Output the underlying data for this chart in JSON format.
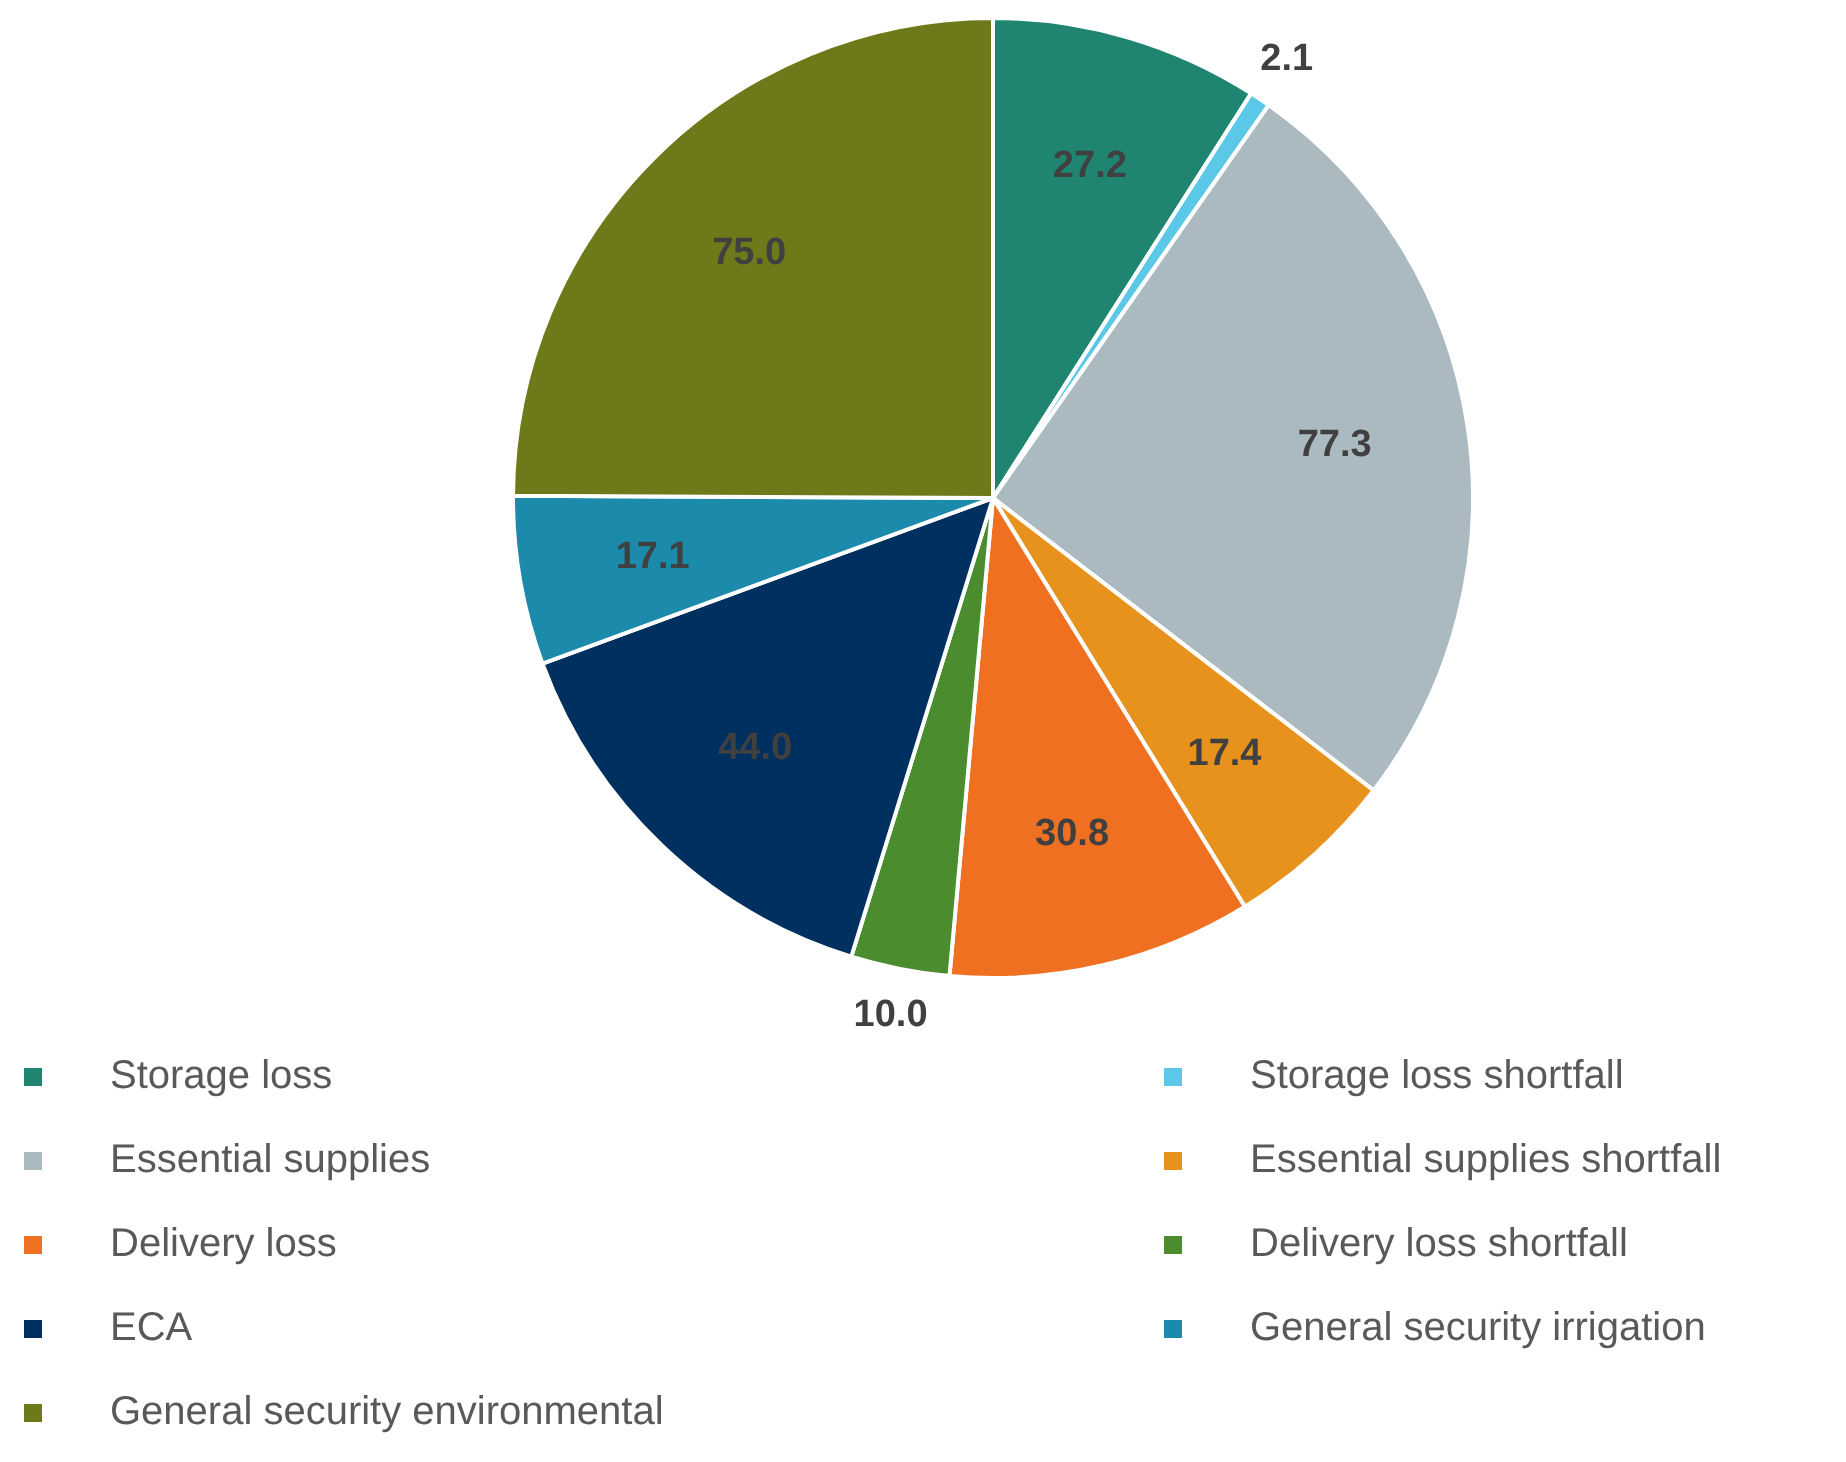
{
  "chart_data": {
    "type": "pie",
    "categories": [
      "Storage loss",
      "Storage loss shortfall",
      "Essential supplies",
      "Essential supplies shortfall",
      "Delivery loss",
      "Delivery loss shortfall",
      "ECA",
      "General security irrigation",
      "General security environmental"
    ],
    "values": [
      27.2,
      2.1,
      77.3,
      17.4,
      30.8,
      10.0,
      44.0,
      17.1,
      75.0
    ],
    "colors": [
      "#1f8470",
      "#5bc8e8",
      "#abb9c1",
      "#e8921e",
      "#f07022",
      "#4a8c2e",
      "#003060",
      "#1b8aab",
      "#6e7a1a"
    ],
    "value_labels": [
      "27.2",
      "2.1",
      "77.3",
      "17.4",
      "30.8",
      "10.0",
      "44.0",
      "17.1",
      "75.0"
    ],
    "legend": "bottom"
  }
}
